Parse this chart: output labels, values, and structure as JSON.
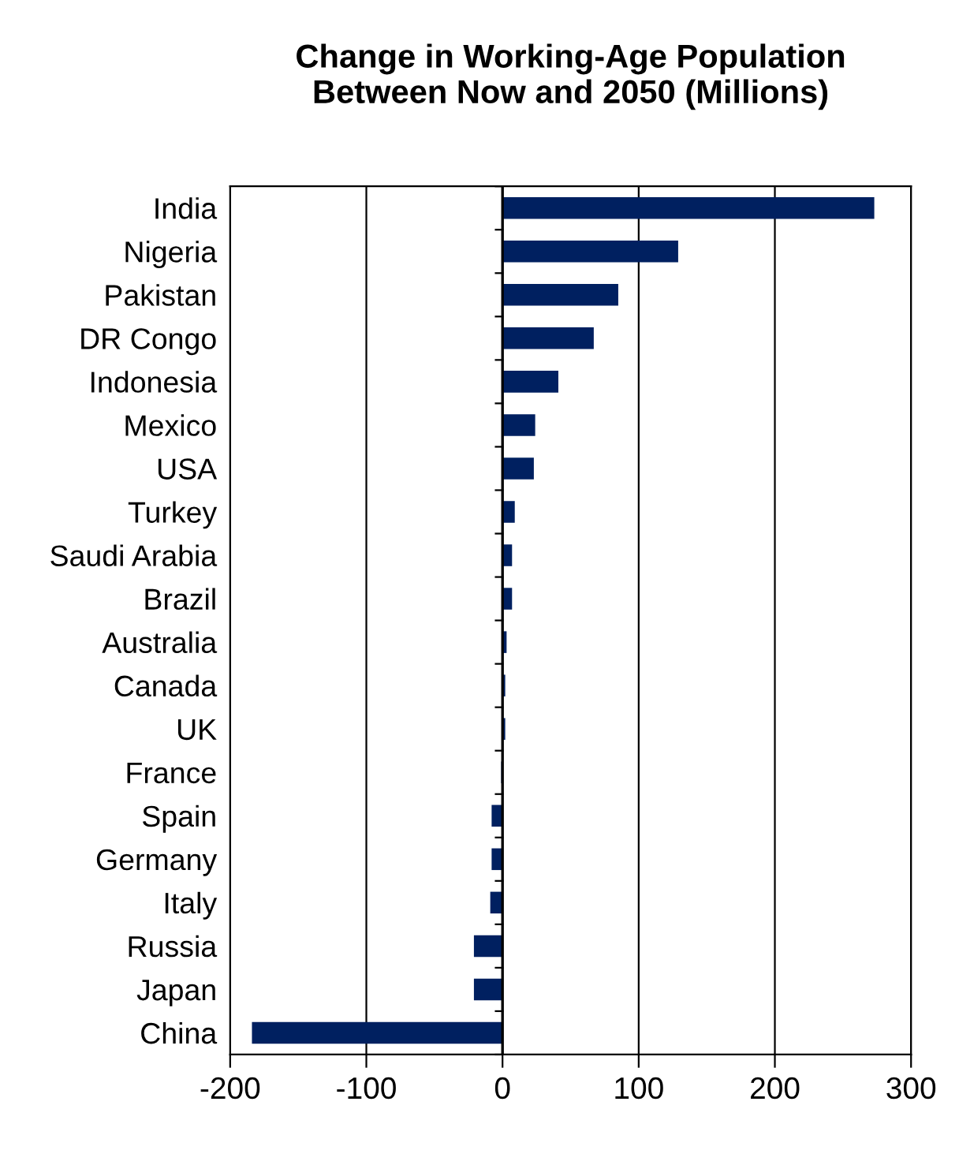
{
  "chart_data": {
    "type": "bar",
    "orientation": "horizontal",
    "title": "Change in Working-Age Population\nBetween Now and 2050 (Millions)",
    "categories": [
      "India",
      "Nigeria",
      "Pakistan",
      "DR Congo",
      "Indonesia",
      "Mexico",
      "USA",
      "Turkey",
      "Saudi Arabia",
      "Brazil",
      "Australia",
      "Canada",
      "UK",
      "France",
      "Spain",
      "Germany",
      "Italy",
      "Russia",
      "Japan",
      "China"
    ],
    "values": [
      273,
      129,
      85,
      67,
      41,
      24,
      23,
      9,
      7,
      7,
      3,
      2,
      2,
      -1,
      -8,
      -8,
      -9,
      -21,
      -21,
      -184
    ],
    "color": "#002060",
    "xlim": [
      -200,
      300
    ],
    "xticks": [
      -200,
      -100,
      0,
      100,
      200,
      300
    ],
    "grid": "x",
    "ref_lines": [
      {
        "axis": "x",
        "value": 0,
        "color": "#000000"
      }
    ]
  }
}
